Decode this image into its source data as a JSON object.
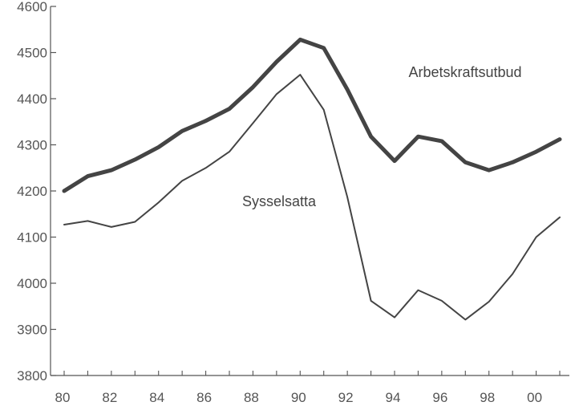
{
  "chart_data": {
    "type": "line",
    "title": "",
    "xlabel": "",
    "ylabel": "",
    "ylim": [
      3800,
      4600
    ],
    "yticks": [
      3800,
      3900,
      4000,
      4100,
      4200,
      4300,
      4400,
      4500,
      4600
    ],
    "xlim": [
      1980,
      2001
    ],
    "xticks": [
      {
        "year": 1980,
        "label": "80"
      },
      {
        "year": 1982,
        "label": "82"
      },
      {
        "year": 1984,
        "label": "84"
      },
      {
        "year": 1986,
        "label": "86"
      },
      {
        "year": 1988,
        "label": "88"
      },
      {
        "year": 1990,
        "label": "90"
      },
      {
        "year": 1992,
        "label": "92"
      },
      {
        "year": 1994,
        "label": "94"
      },
      {
        "year": 1996,
        "label": "96"
      },
      {
        "year": 1998,
        "label": "98"
      },
      {
        "year": 2000,
        "label": "00"
      }
    ],
    "grid": false,
    "x": [
      1980,
      1981,
      1982,
      1983,
      1984,
      1985,
      1986,
      1987,
      1988,
      1989,
      1990,
      1991,
      1992,
      1993,
      1994,
      1995,
      1996,
      1997,
      1998,
      1999,
      2000,
      2001
    ],
    "series": [
      {
        "name": "Arbetskraftsutbud",
        "color": "#444444",
        "values": [
          4200,
          4232,
          4245,
          4268,
          4295,
          4330,
          4352,
          4378,
          4425,
          4480,
          4528,
          4510,
          4420,
          4318,
          4265,
          4318,
          4308,
          4262,
          4245,
          4262,
          4285,
          4312
        ]
      },
      {
        "name": "Sysselsatta",
        "color": "#444444",
        "values": [
          4127,
          4135,
          4122,
          4133,
          4175,
          4222,
          4250,
          4285,
          4347,
          4410,
          4452,
          4376,
          4187,
          3962,
          3926,
          3985,
          3962,
          3921,
          3960,
          4020,
          4100,
          4143
        ]
      }
    ]
  }
}
